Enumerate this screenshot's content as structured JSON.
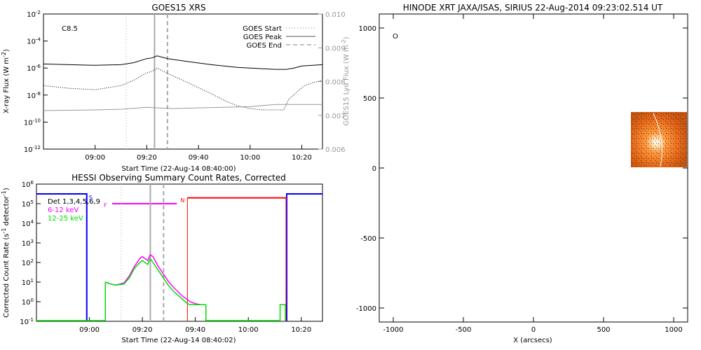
{
  "chart_data": [
    {
      "type": "line",
      "title": "GOES15 XRS",
      "xlabel": "Start Time (22-Aug-14 08:40:00)",
      "ylabel": "X-ray Flux (W m^-2)",
      "y2label": "GOES15 Lyα Flux (W m^-2)",
      "annotation": "C8.5",
      "x_ticks": [
        "09:00",
        "09:20",
        "09:40",
        "10:00",
        "10:20"
      ],
      "x_ticks_minutes": [
        20,
        40,
        60,
        80,
        100
      ],
      "xlim_minutes": [
        0,
        108
      ],
      "y_ticks": [
        "10^-2",
        "10^-4",
        "10^-6",
        "10^-8",
        "10^-10",
        "10^-12"
      ],
      "ylim_log": [
        -12,
        -2
      ],
      "y2_ticks": [
        "0.006",
        "0.007",
        "0.008",
        "0.009",
        "0.010"
      ],
      "y2lim": [
        0.006,
        0.01
      ],
      "legend": [
        {
          "label": "GOES Start",
          "style": "dotted",
          "color": "#aaaaaa"
        },
        {
          "label": "GOES Peak",
          "style": "solid",
          "color": "#aaaaaa"
        },
        {
          "label": "GOES End",
          "style": "dashed",
          "color": "#aaaaaa"
        }
      ],
      "markers_minutes": {
        "start": 32,
        "peak": 43,
        "end": 48
      },
      "series": [
        {
          "color": "#000000",
          "style": "solid",
          "x": [
            0,
            10,
            20,
            30,
            35,
            40,
            42,
            44,
            48,
            55,
            65,
            75,
            85,
            90,
            94,
            97,
            100,
            108
          ],
          "y": [
            -5.7,
            -5.75,
            -5.8,
            -5.75,
            -5.6,
            -5.3,
            -5.25,
            -5.1,
            -5.3,
            -5.5,
            -5.75,
            -5.95,
            -6.05,
            -6.1,
            -6.1,
            -6.0,
            -5.85,
            -5.75
          ]
        },
        {
          "color": "#000000",
          "style": "dotted",
          "x": [
            0,
            10,
            20,
            30,
            35,
            40,
            42,
            44,
            48,
            55,
            65,
            70,
            75,
            80,
            85,
            90,
            93,
            95,
            98,
            101,
            104,
            108
          ],
          "y": [
            -7.3,
            -7.5,
            -7.6,
            -7.3,
            -6.9,
            -6.35,
            -6.25,
            -6.0,
            -6.4,
            -7.0,
            -7.9,
            -8.4,
            -8.8,
            -9.0,
            -9.1,
            -9.1,
            -9.1,
            -8.3,
            -7.8,
            -7.3,
            -7.1,
            -6.9
          ]
        },
        {
          "color": "#999999",
          "style": "solid",
          "x": [
            0,
            20,
            30,
            40,
            44,
            50,
            60,
            70,
            80,
            90,
            100,
            108
          ],
          "y": [
            -9.15,
            -9.1,
            -9.05,
            -8.9,
            -8.95,
            -9.0,
            -8.95,
            -8.9,
            -8.85,
            -8.7,
            -8.7,
            -8.7
          ]
        }
      ]
    },
    {
      "type": "line",
      "title": "HESSI Observing Summary Count Rates, Corrected",
      "xlabel": "Start Time (22-Aug-14 08:40:02)",
      "ylabel": "Corrected Count Rate (s^-1 detector^-1)",
      "x_ticks": [
        "09:00",
        "09:20",
        "09:40",
        "10:00",
        "10:20"
      ],
      "x_ticks_minutes": [
        20,
        40,
        60,
        80,
        100
      ],
      "xlim_minutes": [
        0,
        108
      ],
      "y_ticks": [
        "10^6",
        "10^5",
        "10^4",
        "10^3",
        "10^2",
        "10^1",
        "10^0",
        "10^-1"
      ],
      "ylim_log": [
        -1,
        6
      ],
      "legend": [
        {
          "label": "Det 1,3,4,5,6,9",
          "color": "#000000"
        },
        {
          "label": "6-12 keV",
          "color": "#ff00ff"
        },
        {
          "label": "12-25 keV",
          "color": "#00dd00"
        }
      ],
      "flags": [
        {
          "label": "S",
          "color": "#0000ff",
          "x_minutes": 19
        },
        {
          "label": "F",
          "color": "#ff00ff",
          "x_minutes": 27
        },
        {
          "label": "N",
          "color": "#ff0000",
          "x_minutes": 57
        }
      ],
      "markers_minutes": {
        "start": 32,
        "peak": 43,
        "end": 48
      },
      "series": [
        {
          "name": "6-12 keV",
          "color": "#ff00ff",
          "x": [
            26,
            28,
            30,
            33,
            35,
            37,
            39,
            40,
            42,
            43,
            44,
            46,
            48,
            50,
            52,
            55,
            58,
            60,
            62,
            64
          ],
          "y": [
            1.0,
            0.9,
            0.85,
            0.95,
            1.3,
            1.8,
            2.2,
            2.3,
            2.1,
            2.4,
            2.3,
            1.8,
            1.4,
            1.0,
            0.7,
            0.3,
            0.0,
            -0.1,
            -0.15,
            -0.15
          ]
        },
        {
          "name": "12-25 keV",
          "color": "#00dd00",
          "x": [
            26,
            28,
            30,
            33,
            35,
            37,
            39,
            40,
            42,
            43,
            44,
            46,
            48,
            50,
            52,
            55,
            57,
            58,
            60,
            62,
            64
          ],
          "y": [
            1.0,
            0.9,
            0.85,
            0.9,
            1.2,
            1.7,
            2.0,
            2.1,
            1.9,
            2.2,
            2.0,
            1.6,
            1.2,
            0.8,
            0.5,
            0.15,
            -0.1,
            -0.15,
            -0.15,
            -0.15,
            -0.15
          ]
        }
      ]
    },
    {
      "type": "image",
      "title": "HINODE XRT JAXA/ISAS, SIRIUS 22-Aug-2014 09:23:02.514 UT",
      "xlabel": "X (arcsecs)",
      "x_ticks": [
        "-1000",
        "-500",
        "0",
        "500",
        "1000"
      ],
      "y_ticks": [
        "1000",
        "500",
        "0",
        "-500",
        "-1000"
      ],
      "xlim": [
        -1100,
        1100
      ],
      "ylim": [
        -1100,
        1100
      ],
      "marker": "O",
      "image_patch_arcsec": {
        "x": [
          700,
          1100
        ],
        "y": [
          0,
          400
        ]
      }
    }
  ]
}
